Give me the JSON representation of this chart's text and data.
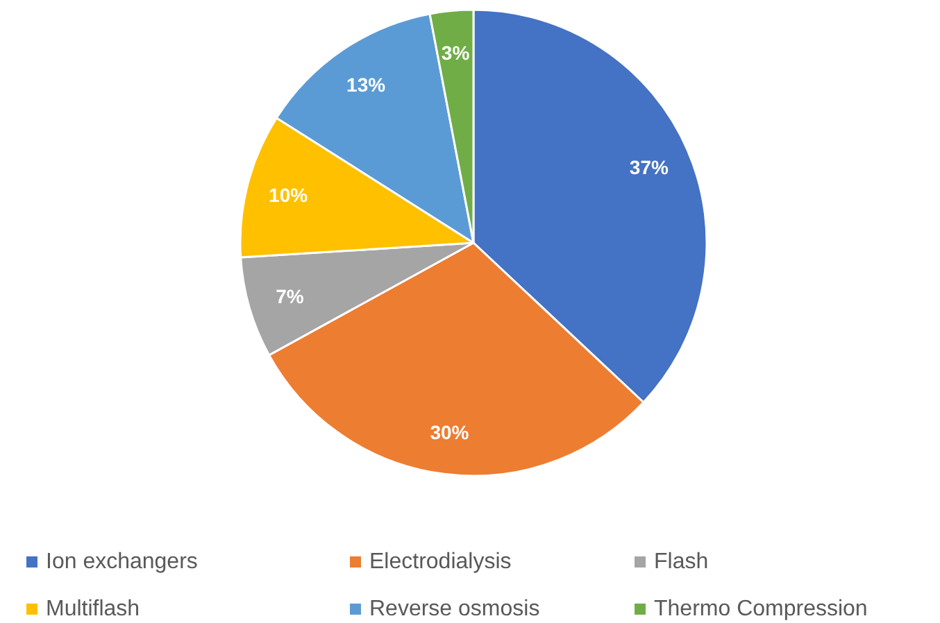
{
  "chart_data": {
    "type": "pie",
    "categories": [
      "Ion exchangers",
      "Electrodialysis",
      "Flash",
      "Multiflash",
      "Reverse osmosis",
      "Thermo Compression"
    ],
    "values": [
      37,
      30,
      7,
      10,
      13,
      3
    ],
    "colors": [
      "#4472c4",
      "#ed7d31",
      "#a5a5a5",
      "#ffc000",
      "#5b9bd5",
      "#70ad47"
    ],
    "value_labels": [
      "37%",
      "30%",
      "7%",
      "10%",
      "13%",
      "3%"
    ],
    "legend": "bottom"
  }
}
